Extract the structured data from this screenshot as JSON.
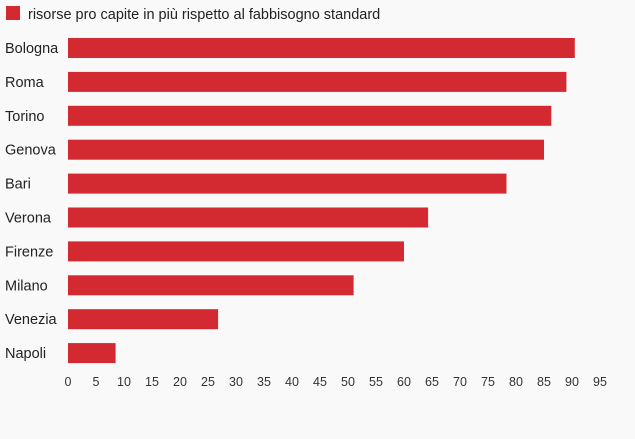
{
  "chart_data": {
    "type": "bar",
    "orientation": "horizontal",
    "categories": [
      "Bologna",
      "Roma",
      "Torino",
      "Genova",
      "Bari",
      "Verona",
      "Firenze",
      "Milano",
      "Venezia",
      "Napoli"
    ],
    "series": [
      {
        "name": "risorse pro capite in più rispetto al fabbisogno standard",
        "values": [
          90.5,
          89,
          86.3,
          85,
          78.3,
          64.3,
          60,
          51,
          26.8,
          8.5
        ]
      }
    ],
    "xlim": [
      0,
      95
    ],
    "xticks": [
      0,
      5,
      10,
      15,
      20,
      25,
      30,
      35,
      40,
      45,
      50,
      55,
      60,
      65,
      70,
      75,
      80,
      85,
      90,
      95
    ],
    "legend_position": "top-left",
    "grid": false,
    "colors": {
      "bar": "#d22a30",
      "background": "#f9f9f9"
    }
  }
}
